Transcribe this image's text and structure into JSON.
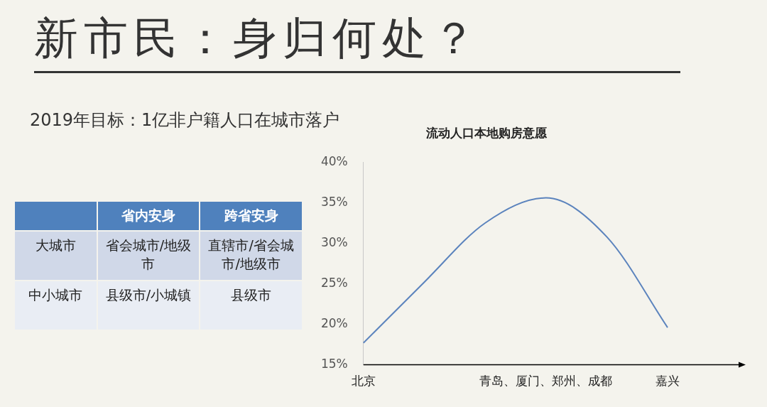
{
  "chart_data": [
    {
      "type": "other",
      "title": "新市民：身归何处？",
      "subtitle": "2019年目标：1亿非户籍人口在城市落户",
      "categories": [
        "省内安身",
        "跨省安身"
      ],
      "y_categories": [
        "大城市",
        "中小城市"
      ],
      "cell_labels": [
        [
          "省会城市/地级市",
          "直辖市/省会城市/地级市"
        ],
        [
          "县级市/小城镇",
          "县级市"
        ]
      ]
    },
    {
      "type": "line",
      "title": "流动人口本地购房意愿",
      "categories": [
        "北京",
        null,
        null,
        "青岛、厦门、郑州、成都",
        null,
        "嘉兴"
      ],
      "series": [
        {
          "color": "#5b83bd",
          "values": [
            17.7,
            25.2,
            32.5,
            35.6,
            30.8,
            19.6
          ]
        }
      ],
      "ylim": [
        15,
        40
      ],
      "yticks": [
        {
          "value": 15,
          "label": "15%"
        },
        {
          "value": 20,
          "label": "20%"
        },
        {
          "value": 25,
          "label": "25%"
        },
        {
          "value": 30,
          "label": "30%"
        },
        {
          "value": 35,
          "label": "35%"
        },
        {
          "value": 40,
          "label": "40%"
        }
      ],
      "grid": false,
      "legend": false,
      "marker": "none",
      "line_style": "solid"
    }
  ]
}
